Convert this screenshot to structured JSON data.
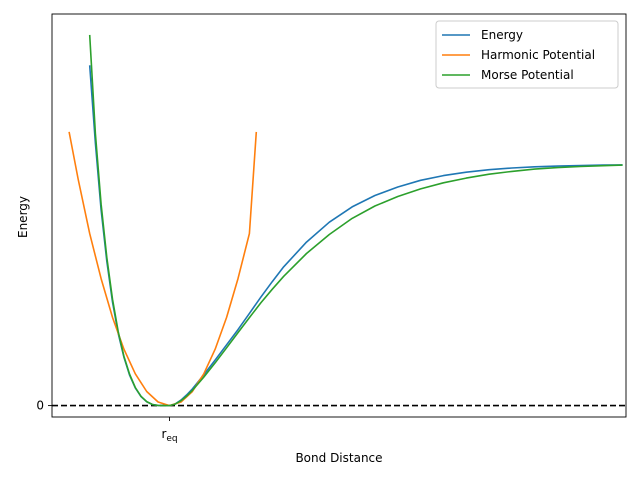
{
  "chart_data": {
    "type": "line",
    "xlabel": "Bond Distance",
    "ylabel": "Energy",
    "x_ticks": [
      {
        "value": 1.0,
        "label": "r",
        "sub": "eq"
      }
    ],
    "y_ticks": [
      {
        "value": 0,
        "label": "0"
      }
    ],
    "xlim": [
      -0.03,
      5.0
    ],
    "ylim": [
      -0.06,
      2.06
    ],
    "reference_line": {
      "y": 0,
      "style": "dashed",
      "color": "#000000"
    },
    "legend_position": "top-right",
    "grid": false,
    "series": [
      {
        "name": "Energy",
        "color": "#1f77b4",
        "x": [
          0.3,
          0.35,
          0.4,
          0.45,
          0.5,
          0.55,
          0.6,
          0.65,
          0.7,
          0.75,
          0.8,
          0.85,
          0.9,
          0.95,
          1.0,
          1.05,
          1.1,
          1.15,
          1.2,
          1.3,
          1.4,
          1.5,
          1.6,
          1.7,
          1.8,
          1.9,
          2.0,
          2.2,
          2.4,
          2.6,
          2.8,
          3.0,
          3.2,
          3.4,
          3.6,
          3.8,
          4.0,
          4.2,
          4.4,
          4.6,
          4.8,
          4.97
        ],
        "y": [
          1.79,
          1.38,
          1.03,
          0.76,
          0.545,
          0.38,
          0.255,
          0.16,
          0.093,
          0.048,
          0.02,
          0.006,
          0.001,
          0.0,
          0.0,
          0.009,
          0.029,
          0.056,
          0.088,
          0.162,
          0.24,
          0.32,
          0.4,
          0.485,
          0.57,
          0.652,
          0.73,
          0.86,
          0.965,
          1.045,
          1.105,
          1.15,
          1.185,
          1.21,
          1.228,
          1.241,
          1.25,
          1.256,
          1.26,
          1.263,
          1.265,
          1.266
        ]
      },
      {
        "name": "Harmonic Potential",
        "color": "#ff7f0e",
        "x": [
          0.12,
          0.2,
          0.3,
          0.4,
          0.5,
          0.6,
          0.7,
          0.8,
          0.9,
          1.0,
          1.1,
          1.2,
          1.3,
          1.4,
          1.5,
          1.6,
          1.7,
          1.76
        ],
        "y": [
          1.44,
          1.19,
          0.905,
          0.668,
          0.464,
          0.297,
          0.167,
          0.074,
          0.019,
          0.0,
          0.019,
          0.074,
          0.167,
          0.297,
          0.464,
          0.668,
          0.905,
          1.44
        ]
      },
      {
        "name": "Morse Potential",
        "color": "#2ca02c",
        "x": [
          0.3,
          0.35,
          0.4,
          0.45,
          0.5,
          0.55,
          0.6,
          0.65,
          0.7,
          0.75,
          0.8,
          0.85,
          0.9,
          0.95,
          1.0,
          1.05,
          1.1,
          1.15,
          1.2,
          1.3,
          1.4,
          1.5,
          1.6,
          1.7,
          1.8,
          1.9,
          2.0,
          2.2,
          2.4,
          2.6,
          2.8,
          3.0,
          3.2,
          3.4,
          3.6,
          3.8,
          4.0,
          4.2,
          4.4,
          4.6,
          4.8,
          4.97
        ],
        "y": [
          1.95,
          1.43,
          1.06,
          0.78,
          0.56,
          0.39,
          0.26,
          0.165,
          0.095,
          0.049,
          0.021,
          0.006,
          0.001,
          0.0,
          0.0,
          0.008,
          0.026,
          0.05,
          0.08,
          0.15,
          0.225,
          0.304,
          0.384,
          0.463,
          0.54,
          0.612,
          0.68,
          0.8,
          0.9,
          0.985,
          1.05,
          1.1,
          1.14,
          1.172,
          1.197,
          1.217,
          1.232,
          1.244,
          1.252,
          1.258,
          1.262,
          1.265
        ]
      }
    ]
  }
}
